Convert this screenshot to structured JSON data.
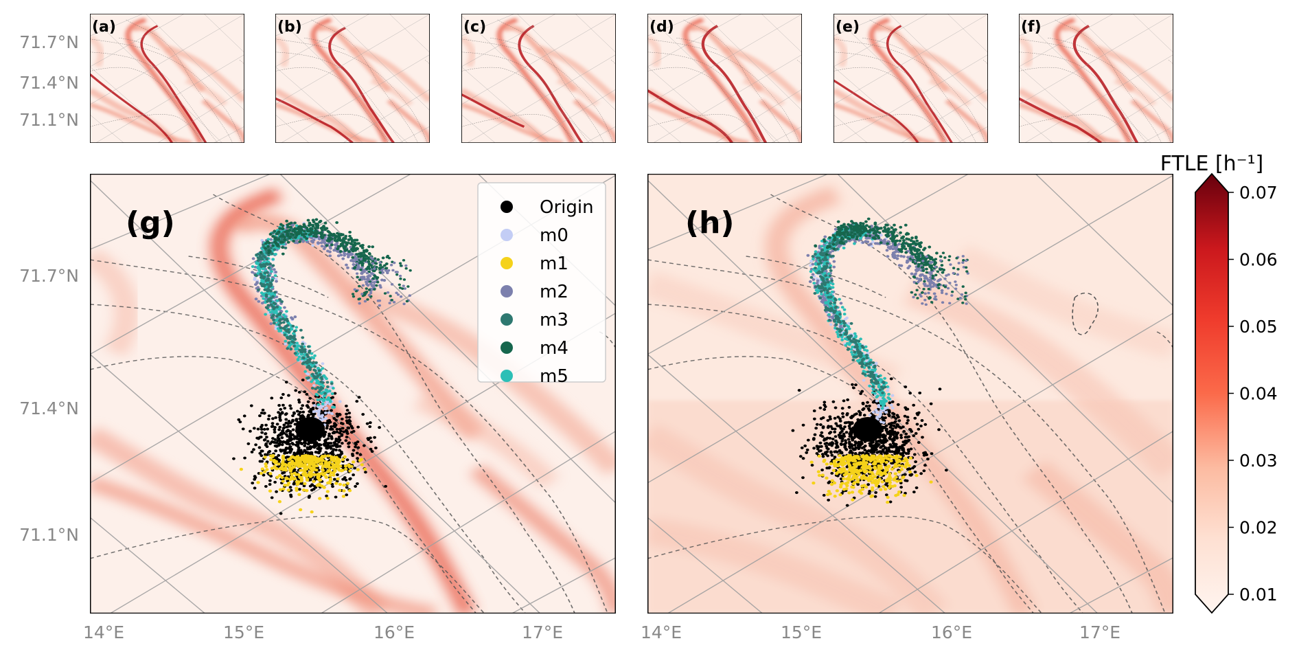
{
  "chart_data": {
    "type": "heatmap",
    "title": "",
    "latitude_ticks": [
      "71.1°N",
      "71.4°N",
      "71.7°N"
    ],
    "longitude_ticks": [
      "14°E",
      "15°E",
      "16°E",
      "17°E"
    ],
    "small_panels": [
      {
        "label": "(a)"
      },
      {
        "label": "(b)"
      },
      {
        "label": "(c)"
      },
      {
        "label": "(d)"
      },
      {
        "label": "(e)"
      },
      {
        "label": "(f)"
      }
    ],
    "large_panels": [
      {
        "label": "(g)"
      },
      {
        "label": "(h)"
      }
    ],
    "colorbar": {
      "label": "FTLE [h⁻¹]",
      "min": 0.01,
      "max": 0.07,
      "ticks": [
        "0.01",
        "0.02",
        "0.03",
        "0.04",
        "0.05",
        "0.06",
        "0.07"
      ],
      "colormap": "Reds",
      "extend": "both"
    },
    "legend": {
      "placement": "top-right of panel (g)",
      "entries": [
        {
          "name": "Origin",
          "color": "#000000"
        },
        {
          "name": "m0",
          "color": "#c3cdf5"
        },
        {
          "name": "m1",
          "color": "#f5d21a"
        },
        {
          "name": "m2",
          "color": "#7c80ad"
        },
        {
          "name": "m3",
          "color": "#2e7870"
        },
        {
          "name": "m4",
          "color": "#16664d"
        },
        {
          "name": "m5",
          "color": "#2cbfb6"
        }
      ]
    },
    "particle_cloud": {
      "origin_center": {
        "lon": 15.5,
        "lat": 71.23
      },
      "origin_spread_deg": {
        "lon": 0.32,
        "lat": 0.1
      }
    }
  },
  "colors": {
    "tick_label": "#888888",
    "graticule": "#a0a0a0",
    "contour": "#555555",
    "background_field": "#fdebe2"
  }
}
